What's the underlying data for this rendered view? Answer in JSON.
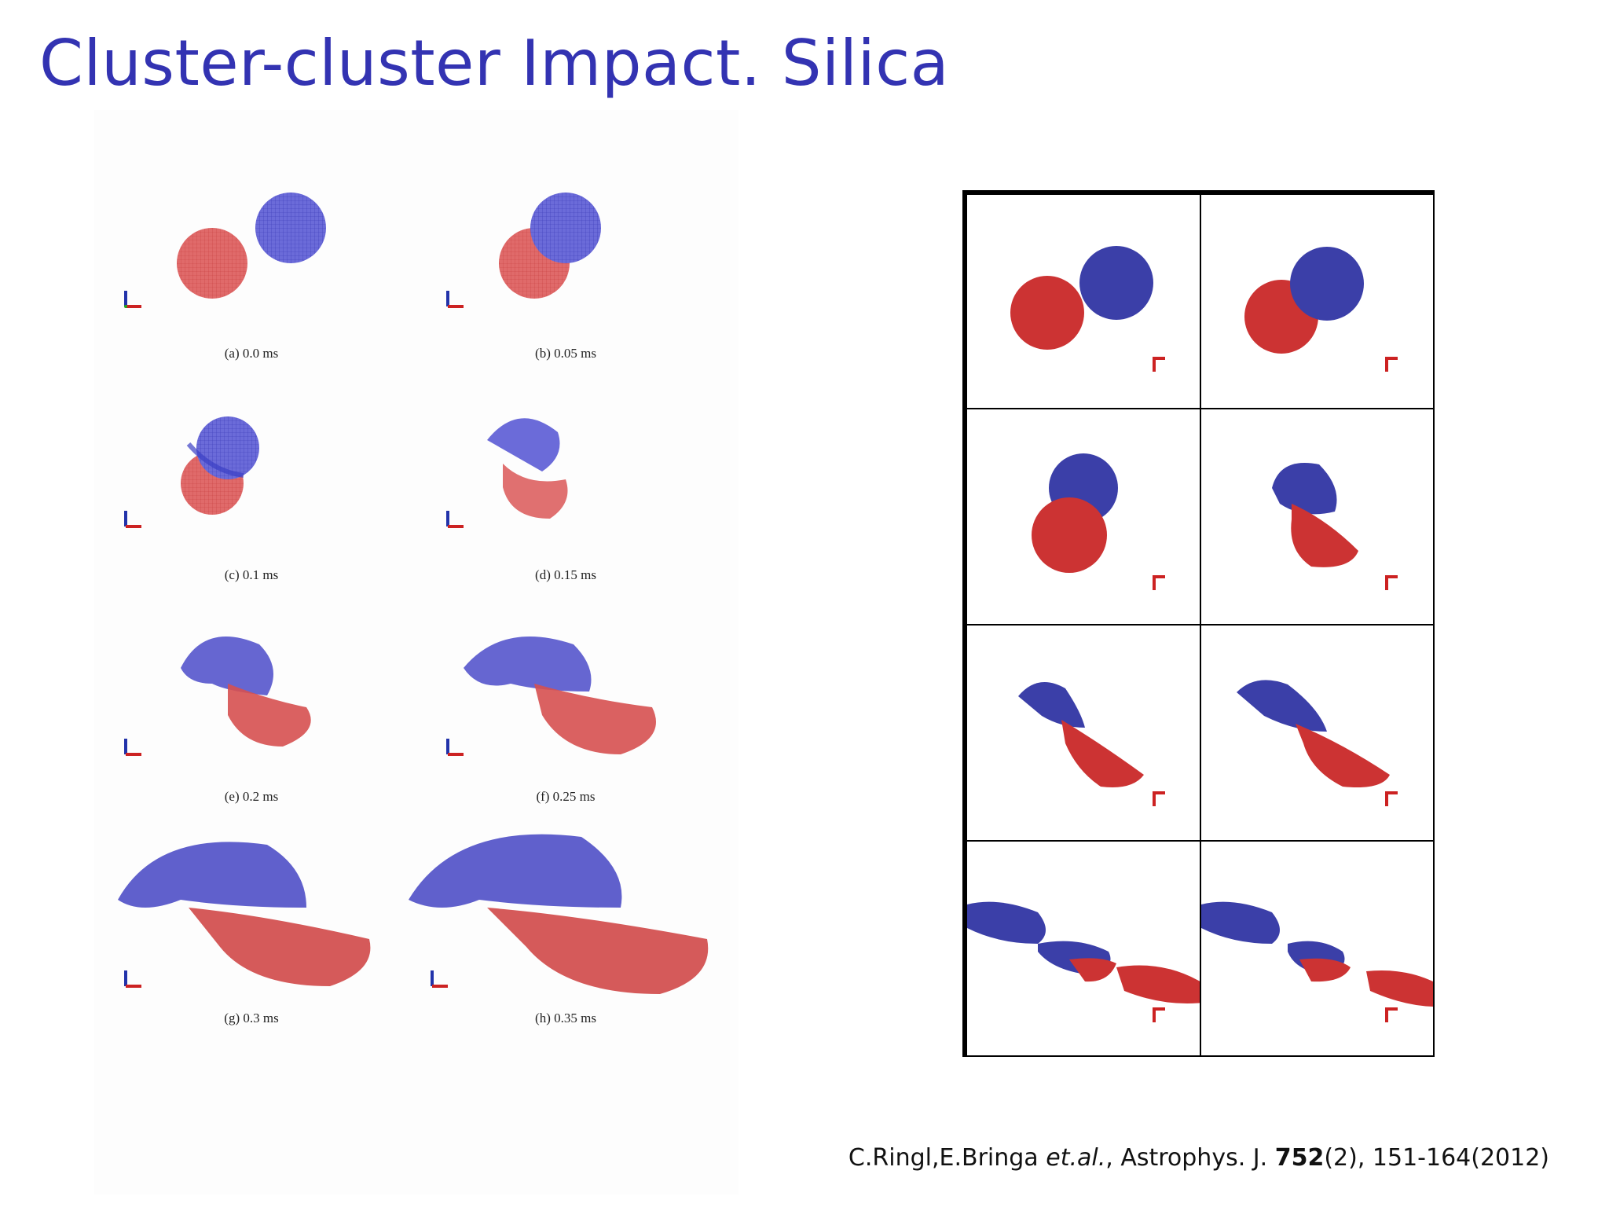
{
  "slide": {
    "title": "Cluster-cluster Impact. Silica"
  },
  "left_figure": {
    "panels": [
      {
        "id": "a",
        "caption": "(a) 0.0 ms"
      },
      {
        "id": "b",
        "caption": "(b) 0.05 ms"
      },
      {
        "id": "c",
        "caption": "(c) 0.1 ms"
      },
      {
        "id": "d",
        "caption": "(d) 0.15 ms"
      },
      {
        "id": "e",
        "caption": "(e) 0.2 ms"
      },
      {
        "id": "f",
        "caption": "(f) 0.25 ms"
      },
      {
        "id": "g",
        "caption": "(g) 0.3 ms"
      },
      {
        "id": "h",
        "caption": "(h) 0.35 ms"
      }
    ]
  },
  "right_figure": {
    "rows": 4,
    "cols": 2
  },
  "citation": {
    "authors": "C.Ringl,E.Bringa ",
    "etal": "et.al.",
    "journal": ", Astrophys. J. ",
    "volume": "752",
    "rest": "(2), 151-164(2012)"
  },
  "colors": {
    "title": "#3333b2",
    "blue_cluster": "#3b3fc4",
    "red_cluster": "#d13a3a"
  }
}
